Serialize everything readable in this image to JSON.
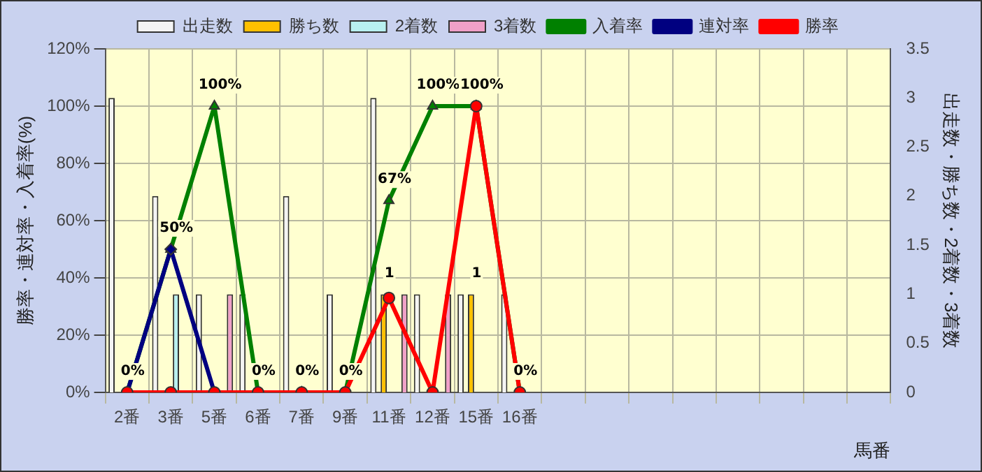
{
  "chart_data": {
    "type": "bar",
    "xlabel": "馬番",
    "ylabel": "勝率・連対率・入着率(%)",
    "y2label": "出走数・勝ち数・2着数・3着数",
    "categories": [
      "2番",
      "3番",
      "5番",
      "6番",
      "7番",
      "9番",
      "11番",
      "12番",
      "15番",
      "16番",
      null,
      null,
      null,
      null,
      null,
      null,
      null,
      null
    ],
    "series": [
      {
        "name": "出走数",
        "axis": "y2",
        "color": "#f4f4f4",
        "values": [
          3,
          2,
          1,
          1,
          2,
          1,
          3,
          1,
          1,
          1,
          null,
          null,
          null,
          null,
          null,
          null,
          null,
          null
        ]
      },
      {
        "name": "勝ち数",
        "axis": "y2",
        "color": "#ffc000",
        "values": [
          0,
          0,
          0,
          0,
          0,
          0,
          1,
          0,
          1,
          0,
          null,
          null,
          null,
          null,
          null,
          null,
          null,
          null
        ],
        "value_labels": [
          null,
          null,
          null,
          null,
          null,
          null,
          "1",
          null,
          "1",
          null,
          null,
          null,
          null,
          null,
          null,
          null,
          null,
          null
        ]
      },
      {
        "name": "2着数",
        "axis": "y2",
        "color": "#b8f0f0",
        "values": [
          0,
          1,
          0,
          0,
          0,
          0,
          0,
          0,
          0,
          0,
          null,
          null,
          null,
          null,
          null,
          null,
          null,
          null
        ]
      },
      {
        "name": "3着数",
        "axis": "y2",
        "color": "#f0a0c8",
        "values": [
          0,
          0,
          1,
          0,
          0,
          0,
          1,
          1,
          0,
          0,
          null,
          null,
          null,
          null,
          null,
          null,
          null,
          null
        ]
      },
      {
        "name": "入着率",
        "type": "line",
        "axis": "y",
        "color": "#008000",
        "marker": "triangle",
        "values": [
          0,
          50,
          100,
          0,
          0,
          0,
          67,
          100,
          100,
          0,
          null,
          null,
          null,
          null,
          null,
          null,
          null,
          null
        ],
        "value_labels": [
          "0%",
          "50%",
          "100%",
          "0%",
          "0%",
          "0%",
          "67%",
          "100%",
          "100%",
          "0%",
          null,
          null,
          null,
          null,
          null,
          null,
          null,
          null
        ]
      },
      {
        "name": "連対率",
        "type": "line",
        "axis": "y",
        "color": "#000080",
        "marker": "diamond",
        "values": [
          0,
          50,
          0,
          null,
          null,
          null,
          null,
          null,
          null,
          null,
          null,
          null,
          null,
          null,
          null,
          null,
          null,
          null
        ]
      },
      {
        "name": "勝率",
        "type": "line",
        "axis": "y",
        "color": "#ff0000",
        "marker": "circle",
        "values": [
          0,
          0,
          0,
          0,
          0,
          0,
          33,
          0,
          100,
          0,
          null,
          null,
          null,
          null,
          null,
          null,
          null,
          null
        ]
      }
    ],
    "ylim": [
      0,
      120
    ],
    "yticks": [
      {
        "value": 0,
        "label": "0%"
      },
      {
        "value": 20,
        "label": "20%"
      },
      {
        "value": 40,
        "label": "40%"
      },
      {
        "value": 60,
        "label": "60%"
      },
      {
        "value": 80,
        "label": "80%"
      },
      {
        "value": 100,
        "label": "100%"
      },
      {
        "value": 120,
        "label": "120%"
      }
    ],
    "y2lim": [
      0,
      3.5
    ],
    "y2ticks": [
      0,
      0.5,
      1,
      1.5,
      2,
      2.5,
      3,
      3.5
    ],
    "grid": true,
    "legend": "top"
  }
}
